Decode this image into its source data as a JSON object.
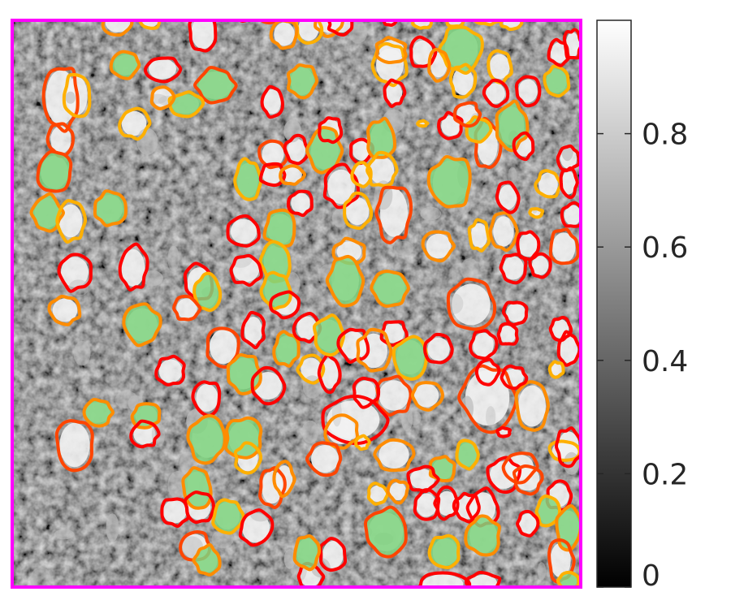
{
  "image": {
    "description_colors": {
      "border": "#ff00ff",
      "fill_accepted": "#7ed47e",
      "outline_red": "#ff0000",
      "outline_orange_red": "#ff4500",
      "outline_orange": "#ff8c00",
      "outline_amber": "#ffb000"
    }
  },
  "colorbar": {
    "ticks": [
      "0",
      "0.2",
      "0.4",
      "0.6",
      "0.8"
    ],
    "range": [
      0,
      1
    ],
    "colormap": "gray"
  }
}
